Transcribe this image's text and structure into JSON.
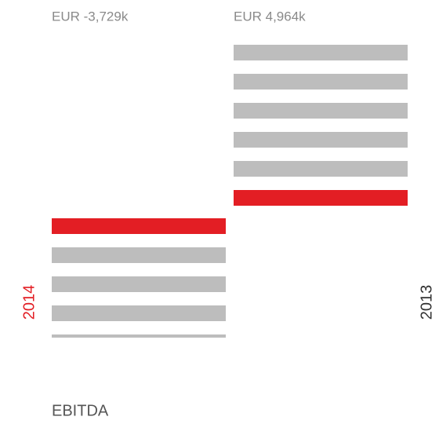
{
  "chart_data": {
    "type": "bar",
    "title": "EBITDA",
    "categories": [
      "2014",
      "2013"
    ],
    "values": [
      -3729,
      4964
    ],
    "value_labels": [
      "EUR -3,729k",
      "EUR 4,964k"
    ],
    "color": "#bdbdbd",
    "highlight_color": "#e31e24",
    "category_colors": [
      "#e31e24",
      "#333333"
    ]
  }
}
